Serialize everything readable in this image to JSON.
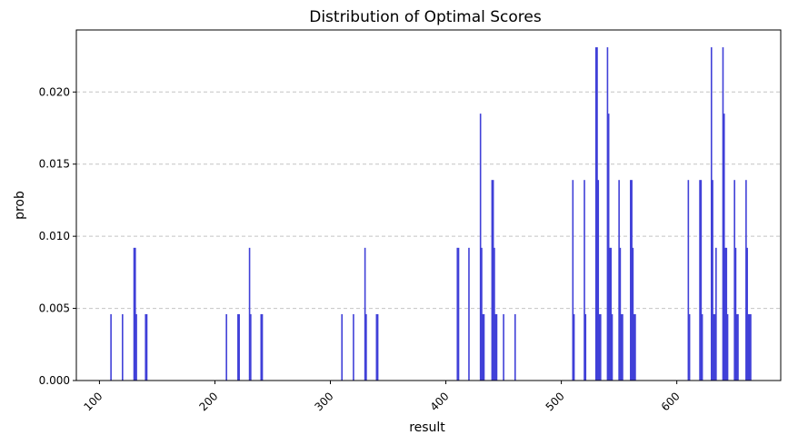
{
  "chart_data": {
    "type": "bar",
    "title": "Distribution of Optimal Scores",
    "xlabel": "result",
    "ylabel": "prob",
    "xlim": [
      80,
      690
    ],
    "ylim": [
      0,
      0.0243
    ],
    "xticks": [
      100,
      200,
      300,
      400,
      500,
      600
    ],
    "yticks": [
      0.0,
      0.005,
      0.01,
      0.015,
      0.02
    ],
    "ytick_labels": [
      "0.000",
      "0.005",
      "0.010",
      "0.015",
      "0.020"
    ],
    "xtick_labels": [
      "100",
      "200",
      "300",
      "400",
      "500",
      "600"
    ],
    "grid": "y-dashed",
    "bar_color": "#4040d8",
    "x": [
      110,
      120,
      130,
      131,
      132,
      140,
      141,
      210,
      220,
      221,
      230,
      231,
      240,
      241,
      310,
      320,
      330,
      331,
      340,
      341,
      410,
      411,
      420,
      430,
      431,
      432,
      433,
      440,
      441,
      442,
      443,
      444,
      450,
      460,
      510,
      511,
      520,
      521,
      530,
      531,
      532,
      533,
      534,
      540,
      541,
      542,
      543,
      544,
      550,
      551,
      552,
      553,
      560,
      561,
      562,
      563,
      564,
      610,
      611,
      620,
      621,
      622,
      630,
      631,
      632,
      633,
      634,
      640,
      641,
      642,
      643,
      644,
      650,
      651,
      652,
      653,
      660,
      661,
      662,
      663,
      664
    ],
    "values": [
      0.0046,
      0.0046,
      0.0092,
      0.0092,
      0.0046,
      0.0046,
      0.0046,
      0.0046,
      0.0046,
      0.0046,
      0.0092,
      0.0046,
      0.0046,
      0.0046,
      0.0046,
      0.0046,
      0.0092,
      0.0046,
      0.0046,
      0.0046,
      0.0092,
      0.0092,
      0.0092,
      0.0185,
      0.0092,
      0.0046,
      0.0046,
      0.0139,
      0.0139,
      0.0092,
      0.0046,
      0.0046,
      0.0046,
      0.0046,
      0.0139,
      0.0046,
      0.0139,
      0.0046,
      0.0231,
      0.0231,
      0.0139,
      0.0046,
      0.0046,
      0.0231,
      0.0185,
      0.0092,
      0.0092,
      0.0046,
      0.0139,
      0.0092,
      0.0046,
      0.0046,
      0.0139,
      0.0139,
      0.0092,
      0.0046,
      0.0046,
      0.0139,
      0.0046,
      0.0139,
      0.0139,
      0.0046,
      0.0231,
      0.0139,
      0.0046,
      0.0046,
      0.0092,
      0.0231,
      0.0185,
      0.0092,
      0.0092,
      0.0046,
      0.0139,
      0.0092,
      0.0046,
      0.0046,
      0.0139,
      0.0092,
      0.0046,
      0.0046,
      0.0046
    ]
  }
}
